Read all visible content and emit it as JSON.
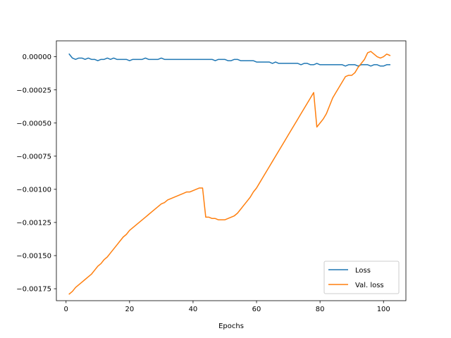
{
  "chart_data": {
    "type": "line",
    "title": "",
    "xlabel": "Epochs",
    "ylabel": "",
    "xlim": [
      -3.05,
      107.05
    ],
    "ylim": [
      -0.00184,
      0.00012
    ],
    "xticks": [
      0,
      20,
      40,
      60,
      80,
      100
    ],
    "xtick_labels": [
      "0",
      "20",
      "40",
      "60",
      "80",
      "100"
    ],
    "yticks": [
      0.0,
      -0.00025,
      -0.0005,
      -0.00075,
      -0.001,
      -0.00125,
      -0.0015,
      -0.00175
    ],
    "ytick_labels": [
      "0.00000",
      "−0.00025",
      "−0.00050",
      "−0.00075",
      "−0.00100",
      "−0.00125",
      "−0.00150",
      "−0.00175"
    ],
    "grid": false,
    "legend_position": "lower-right",
    "series": [
      {
        "name": "Loss",
        "color": "#1f77b4",
        "x": [
          1,
          2,
          3,
          4,
          5,
          6,
          7,
          8,
          9,
          10,
          11,
          12,
          13,
          14,
          15,
          16,
          17,
          18,
          19,
          20,
          21,
          22,
          23,
          24,
          25,
          26,
          27,
          28,
          29,
          30,
          31,
          32,
          33,
          34,
          35,
          36,
          37,
          38,
          39,
          40,
          41,
          42,
          43,
          44,
          45,
          46,
          47,
          48,
          49,
          50,
          51,
          52,
          53,
          54,
          55,
          56,
          57,
          58,
          59,
          60,
          61,
          62,
          63,
          64,
          65,
          66,
          67,
          68,
          69,
          70,
          71,
          72,
          73,
          74,
          75,
          76,
          77,
          78,
          79,
          80,
          81,
          82,
          83,
          84,
          85,
          86,
          87,
          88,
          89,
          90,
          91,
          92,
          93,
          94,
          95,
          96,
          97,
          98,
          99,
          100,
          101,
          102
        ],
        "y": [
          2e-05,
          -1e-05,
          -2e-05,
          -1e-05,
          -1e-05,
          -2e-05,
          -1e-05,
          -2e-05,
          -2e-05,
          -3e-05,
          -2e-05,
          -2e-05,
          -1e-05,
          -2e-05,
          -1e-05,
          -2e-05,
          -2e-05,
          -2e-05,
          -2e-05,
          -3e-05,
          -2e-05,
          -2e-05,
          -2e-05,
          -2e-05,
          -1e-05,
          -2e-05,
          -2e-05,
          -2e-05,
          -2e-05,
          -1e-05,
          -2e-05,
          -2e-05,
          -2e-05,
          -2e-05,
          -2e-05,
          -2e-05,
          -2e-05,
          -2e-05,
          -2e-05,
          -2e-05,
          -2e-05,
          -2e-05,
          -2e-05,
          -2e-05,
          -2e-05,
          -2e-05,
          -3e-05,
          -2e-05,
          -2e-05,
          -2e-05,
          -3e-05,
          -3e-05,
          -2e-05,
          -2e-05,
          -3e-05,
          -3e-05,
          -3e-05,
          -3e-05,
          -3e-05,
          -4e-05,
          -4e-05,
          -4e-05,
          -4e-05,
          -4e-05,
          -5e-05,
          -4e-05,
          -5e-05,
          -5e-05,
          -5e-05,
          -5e-05,
          -5e-05,
          -5e-05,
          -5e-05,
          -6e-05,
          -5e-05,
          -5e-05,
          -6e-05,
          -6e-05,
          -5e-05,
          -6e-05,
          -6e-05,
          -6e-05,
          -6e-05,
          -6e-05,
          -6e-05,
          -6e-05,
          -6e-05,
          -7e-05,
          -6e-05,
          -6e-05,
          -6e-05,
          -7e-05,
          -6e-05,
          -6e-05,
          -6e-05,
          -7e-05,
          -6e-05,
          -6e-05,
          -7e-05,
          -7e-05,
          -6e-05,
          -6e-05
        ]
      },
      {
        "name": "Val. loss",
        "color": "#ff7f0e",
        "x": [
          1,
          2,
          3,
          4,
          5,
          6,
          7,
          8,
          9,
          10,
          11,
          12,
          13,
          14,
          15,
          16,
          17,
          18,
          19,
          20,
          21,
          22,
          23,
          24,
          25,
          26,
          27,
          28,
          29,
          30,
          31,
          32,
          33,
          34,
          35,
          36,
          37,
          38,
          39,
          40,
          41,
          42,
          43,
          44,
          45,
          46,
          47,
          48,
          49,
          50,
          51,
          52,
          53,
          54,
          55,
          56,
          57,
          58,
          59,
          60,
          61,
          62,
          63,
          64,
          65,
          66,
          67,
          68,
          69,
          70,
          71,
          72,
          73,
          74,
          75,
          76,
          77,
          78,
          79,
          80,
          81,
          82,
          83,
          84,
          85,
          86,
          87,
          88,
          89,
          90,
          91,
          92,
          93,
          94,
          95,
          96,
          97,
          98,
          99,
          100,
          101,
          102
        ],
        "y": [
          -0.00179,
          -0.00177,
          -0.00174,
          -0.00172,
          -0.0017,
          -0.00168,
          -0.00166,
          -0.00164,
          -0.00161,
          -0.00158,
          -0.00156,
          -0.00153,
          -0.00151,
          -0.00148,
          -0.00145,
          -0.00142,
          -0.00139,
          -0.00136,
          -0.00134,
          -0.00131,
          -0.00129,
          -0.00127,
          -0.00125,
          -0.00123,
          -0.00121,
          -0.00119,
          -0.00117,
          -0.00115,
          -0.00113,
          -0.00111,
          -0.0011,
          -0.00108,
          -0.00107,
          -0.00106,
          -0.00105,
          -0.00104,
          -0.00103,
          -0.00102,
          -0.00102,
          -0.00101,
          -0.001,
          -0.00099,
          -0.00099,
          -0.00121,
          -0.00121,
          -0.00122,
          -0.00122,
          -0.00123,
          -0.00123,
          -0.00123,
          -0.00122,
          -0.00121,
          -0.0012,
          -0.00118,
          -0.00115,
          -0.00112,
          -0.00109,
          -0.00106,
          -0.00102,
          -0.00099,
          -0.00095,
          -0.00091,
          -0.00087,
          -0.00083,
          -0.00079,
          -0.00075,
          -0.00071,
          -0.00067,
          -0.00063,
          -0.00059,
          -0.00055,
          -0.00051,
          -0.00047,
          -0.00043,
          -0.00039,
          -0.00035,
          -0.00031,
          -0.00027,
          -0.00053,
          -0.0005,
          -0.00047,
          -0.00043,
          -0.00037,
          -0.00031,
          -0.00027,
          -0.00023,
          -0.00019,
          -0.00015,
          -0.00014,
          -0.00014,
          -0.00012,
          -8e-05,
          -5e-05,
          -2e-05,
          3e-05,
          4e-05,
          2e-05,
          0.0,
          -1e-05,
          0.0,
          2e-05,
          1e-05
        ]
      }
    ]
  }
}
